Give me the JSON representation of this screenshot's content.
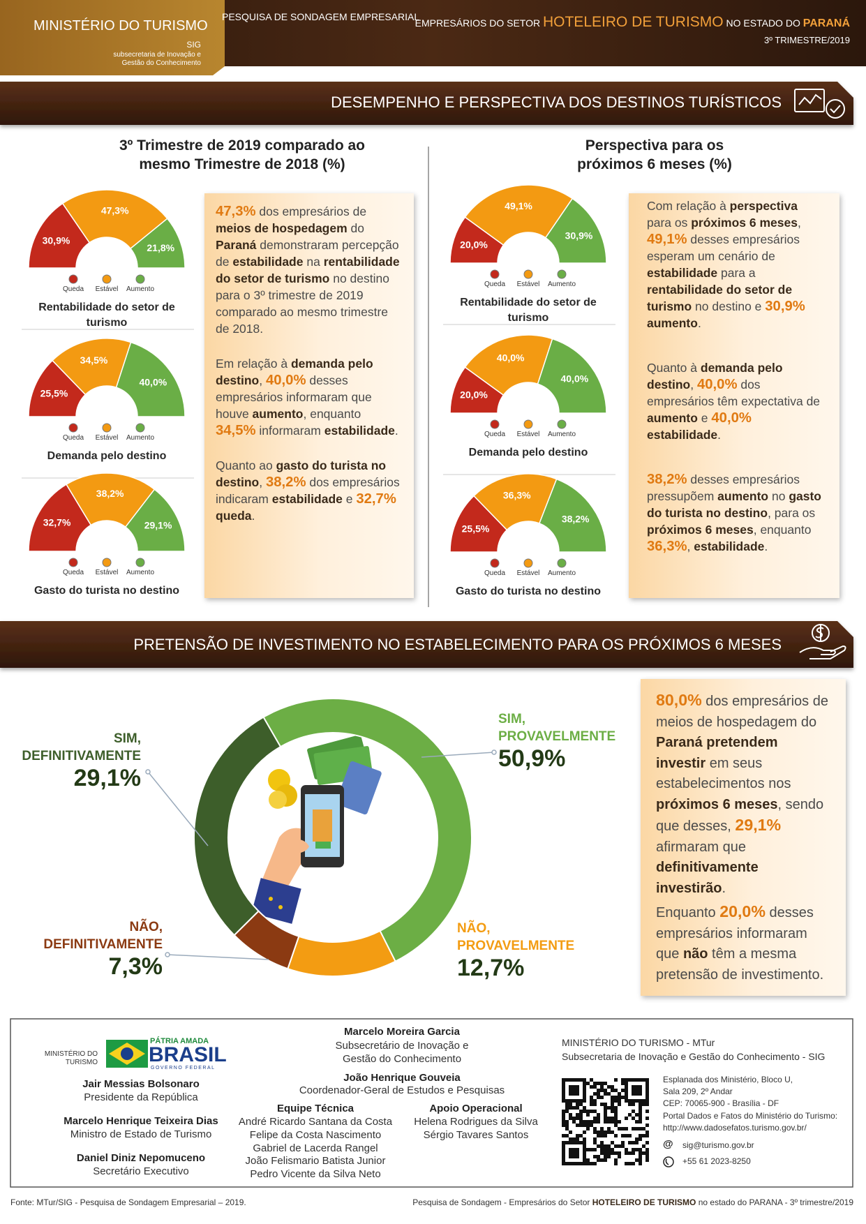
{
  "header": {
    "ministry": "MINISTÉRIO DO TURISMO",
    "sig": "SIG",
    "sub": [
      "subsecretaria de Inovação e",
      "Gestão do Conhecimento"
    ],
    "survey": "PESQUISA DE SONDAGEM EMPRESARIAL",
    "title": [
      {
        "t": "EMPRESÁRIOS DO SETOR "
      },
      {
        "t": "HOTELEIRO DE TURISMO",
        "s": "big"
      },
      {
        "t": " NO ESTADO DO "
      },
      {
        "t": "PARANÁ",
        "s": "hb"
      }
    ],
    "period": "3º TRIMESTRE/2019"
  },
  "sections": [
    "DESEMPENHO E PERSPECTIVA DOS DESTINOS TURÍSTICOS",
    "PRETENSÃO DE INVESTIMENTO NO ESTABELECIMENTO PARA OS PRÓXIMOS 6 MESES"
  ],
  "columns": [
    "3º Trimestre de 2019 comparado ao mesmo Trimestre de 2018 (%)",
    "Perspectiva para os próximos 6 meses (%)"
  ],
  "chart_data": [
    {
      "type": "gauge",
      "title": "Rentabilidade do setor de turismo",
      "categories": [
        "Queda",
        "Estável",
        "Aumento"
      ],
      "values": [
        30.9,
        47.3,
        21.8
      ],
      "value_labels": [
        "30,9%",
        "47,3%",
        "21,8%"
      ],
      "colors": [
        "#c3291c",
        "#f39a12",
        "#6aae46"
      ]
    },
    {
      "type": "gauge",
      "title": "Demanda pelo destino",
      "categories": [
        "Queda",
        "Estável",
        "Aumento"
      ],
      "values": [
        25.5,
        34.5,
        40.0
      ],
      "value_labels": [
        "25,5%",
        "34,5%",
        "40,0%"
      ],
      "colors": [
        "#c3291c",
        "#f39a12",
        "#6aae46"
      ]
    },
    {
      "type": "gauge",
      "title": "Gasto do turista no destino",
      "categories": [
        "Queda",
        "Estável",
        "Aumento"
      ],
      "values": [
        32.7,
        38.2,
        29.1
      ],
      "value_labels": [
        "32,7%",
        "38,2%",
        "29,1%"
      ],
      "colors": [
        "#c3291c",
        "#f39a12",
        "#6aae46"
      ]
    },
    {
      "type": "gauge",
      "title": "Rentabilidade do setor de turismo",
      "categories": [
        "Queda",
        "Estável",
        "Aumento"
      ],
      "values": [
        20.0,
        49.1,
        30.9
      ],
      "value_labels": [
        "20,0%",
        "49,1%",
        "30,9%"
      ],
      "colors": [
        "#c3291c",
        "#f39a12",
        "#6aae46"
      ]
    },
    {
      "type": "gauge",
      "title": "Demanda pelo destino",
      "categories": [
        "Queda",
        "Estável",
        "Aumento"
      ],
      "values": [
        20.0,
        40.0,
        40.0
      ],
      "value_labels": [
        "20,0%",
        "40,0%",
        "40,0%"
      ],
      "colors": [
        "#c3291c",
        "#f39a12",
        "#6aae46"
      ]
    },
    {
      "type": "gauge",
      "title": "Gasto do turista no destino",
      "categories": [
        "Queda",
        "Estável",
        "Aumento"
      ],
      "values": [
        25.5,
        36.3,
        38.2
      ],
      "value_labels": [
        "25,5%",
        "36,3%",
        "38,2%"
      ],
      "colors": [
        "#c3291c",
        "#f39a12",
        "#6aae46"
      ]
    },
    {
      "type": "donut",
      "categories": [
        "SIM, PROVAVELMENTE",
        "NÃO, PROVAVELMENTE",
        "NÃO, DEFINITIVAMENTE",
        "SIM, DEFINITIVAMENTE"
      ],
      "values": [
        50.9,
        12.7,
        7.3,
        29.1
      ],
      "value_labels": [
        "50,9%",
        "12,7%",
        "7,3%",
        "29,1%"
      ],
      "colors": [
        "#6cae45",
        "#f39c12",
        "#8b3a12",
        "#3d5e2a"
      ]
    }
  ],
  "texts": {
    "left": [
      [
        {
          "t": "47,3%",
          "s": "h"
        },
        {
          "t": " dos empresários de "
        },
        {
          "t": "meios de hospedagem",
          "s": "b"
        },
        {
          "t": " do "
        },
        {
          "t": "Paraná",
          "s": "b"
        },
        {
          "t": " demonstraram percepção de "
        },
        {
          "t": "estabilidade",
          "s": "b"
        },
        {
          "t": " na "
        },
        {
          "t": "rentabilidade do setor de turismo",
          "s": "b"
        },
        {
          "t": " no destino para o 3º trimestre de 2019 comparado ao mesmo trimestre de 2018."
        }
      ],
      [
        {
          "t": "Em relação à "
        },
        {
          "t": "demanda pelo destino",
          "s": "b"
        },
        {
          "t": ", "
        },
        {
          "t": "40,0%",
          "s": "h"
        },
        {
          "t": " desses empresários informaram que houve "
        },
        {
          "t": "aumento",
          "s": "b"
        },
        {
          "t": ", enquanto "
        },
        {
          "t": "34,5%",
          "s": "h"
        },
        {
          "t": " informaram "
        },
        {
          "t": "estabilidade",
          "s": "b"
        },
        {
          "t": "."
        }
      ],
      [
        {
          "t": "Quanto ao "
        },
        {
          "t": "gasto do turista no destino",
          "s": "b"
        },
        {
          "t": ", "
        },
        {
          "t": "38,2%",
          "s": "h"
        },
        {
          "t": " dos empresários indicaram "
        },
        {
          "t": "estabilidade",
          "s": "b"
        },
        {
          "t": " e "
        },
        {
          "t": "32,7%",
          "s": "h"
        },
        {
          "t": " "
        },
        {
          "t": "queda",
          "s": "b"
        },
        {
          "t": "."
        }
      ]
    ],
    "right": [
      [
        {
          "t": "Com relação à "
        },
        {
          "t": "perspectiva",
          "s": "b"
        },
        {
          "t": " para os "
        },
        {
          "t": "próximos 6 meses",
          "s": "b"
        },
        {
          "t": ", "
        },
        {
          "t": "49,1%",
          "s": "h"
        },
        {
          "t": " desses empresários esperam um cenário de "
        },
        {
          "t": "estabilidade",
          "s": "b"
        },
        {
          "t": " para a "
        },
        {
          "t": "rentabilidade do setor de turismo",
          "s": "b"
        },
        {
          "t": " no destino e "
        },
        {
          "t": "30,9%",
          "s": "h"
        },
        {
          "t": " "
        },
        {
          "t": "aumento",
          "s": "b"
        },
        {
          "t": "."
        }
      ],
      [
        {
          "t": "Quanto à "
        },
        {
          "t": "demanda pelo destino",
          "s": "b"
        },
        {
          "t": ", "
        },
        {
          "t": "40,0%",
          "s": "h"
        },
        {
          "t": " dos empresários têm expectativa de "
        },
        {
          "t": "aumento",
          "s": "b"
        },
        {
          "t": " e "
        },
        {
          "t": "40,0%",
          "s": "h"
        },
        {
          "t": " "
        },
        {
          "t": "estabilidade",
          "s": "b"
        },
        {
          "t": "."
        }
      ],
      [
        {
          "t": "38,2%",
          "s": "h"
        },
        {
          "t": " desses empresários pressupõem "
        },
        {
          "t": "aumento",
          "s": "b"
        },
        {
          "t": " no "
        },
        {
          "t": "gasto do turista no destino",
          "s": "b"
        },
        {
          "t": ", para os "
        },
        {
          "t": "próximos 6 meses",
          "s": "b"
        },
        {
          "t": ", enquanto "
        },
        {
          "t": "36,3%",
          "s": "h"
        },
        {
          "t": ", "
        },
        {
          "t": "estabilidade",
          "s": "b"
        },
        {
          "t": "."
        }
      ]
    ],
    "investment": [
      [
        {
          "t": "80,0%",
          "s": "h"
        },
        {
          "t": " dos empresários de meios de hospedagem do "
        },
        {
          "t": "Paraná pretendem investir",
          "s": "b"
        },
        {
          "t": " em seus estabelecimentos nos "
        },
        {
          "t": "próximos 6 meses",
          "s": "b"
        },
        {
          "t": ", sendo que desses, "
        },
        {
          "t": "29,1%",
          "s": "h"
        },
        {
          "t": " afirmaram que "
        },
        {
          "t": "definitivamente investirão",
          "s": "b"
        },
        {
          "t": "."
        }
      ],
      [
        {
          "t": "Enquanto "
        },
        {
          "t": "20,0%",
          "s": "h"
        },
        {
          "t": " desses empresários informaram que "
        },
        {
          "t": "não",
          "s": "b"
        },
        {
          "t": " têm a mesma pretensão de investimento."
        }
      ]
    ]
  },
  "footer": {
    "logo": {
      "ministry": "MINISTÉRIO DO TURISMO",
      "slogan": "PÁTRIA AMADA",
      "brand": "BRASIL",
      "government": "GOVERNO FEDERAL"
    },
    "officials": [
      {
        "name": "Jair Messias Bolsonaro",
        "role": "Presidente da República"
      },
      {
        "name": "Marcelo Henrique Teixeira Dias",
        "role": "Ministro de Estado de Turismo"
      },
      {
        "name": "Daniel Diniz Nepomuceno",
        "role": "Secretário Executivo"
      }
    ],
    "management": [
      {
        "name": "Marcelo Moreira Garcia",
        "role": "Subsecretário de Inovação e Gestão do Conhecimento"
      },
      {
        "name": "João Henrique Gouveia",
        "role": "Coordenador-Geral de Estudos e Pesquisas"
      }
    ],
    "team": {
      "title": "Equipe Técnica",
      "members": [
        "André Ricardo Santana da Costa",
        "Felipe da Costa Nascimento",
        "Gabriel de Lacerda Rangel",
        "João Felismario Batista Junior",
        "Pedro Vicente da Silva Neto"
      ]
    },
    "support": {
      "title": "Apoio Operacional",
      "members": [
        "Helena Rodrigues da Silva",
        "Sérgio Tavares Santos"
      ]
    },
    "contact": {
      "org": "MINISTÉRIO DO TURISMO - MTur",
      "unit": "Subsecretaria de Inovação e Gestão do Conhecimento - SIG",
      "address": [
        "Esplanada dos Ministério, Bloco U,",
        "Sala 209, 2º Andar",
        "CEP: 70065-900 - Brasília - DF"
      ],
      "portal": "Portal Dados e Fatos do Ministério do Turismo:",
      "url": "http://www.dadosefatos.turismo.gov.br/",
      "email_icon": "@",
      "email": "sig@turismo.gov.br",
      "phone": "+55 61 2023-8250"
    },
    "source": "Fonte: MTur/SIG - Pesquisa de Sondagem Empresarial – 2019.",
    "credit": [
      {
        "t": "Pesquisa de Sondagem - Empresários do Setor "
      },
      {
        "t": "HOTELEIRO DE TURISMO",
        "s": "b"
      },
      {
        "t": " no estado do PARANA - 3º trimestre/2019"
      }
    ]
  }
}
